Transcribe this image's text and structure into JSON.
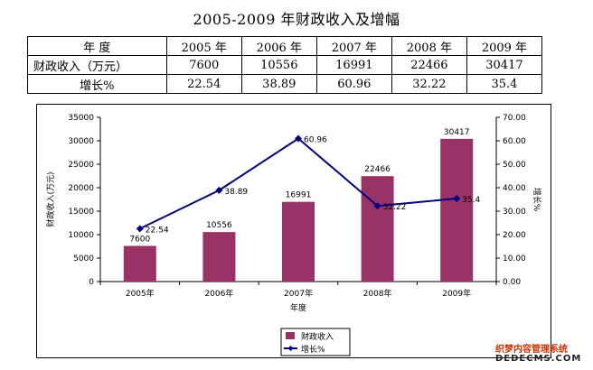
{
  "page_title": "2005-2009 年财政收入及增幅",
  "table": {
    "header": [
      "年    度",
      "2005 年",
      "2006 年",
      "2007 年",
      "2008 年",
      "2009 年"
    ],
    "rows": [
      {
        "label": "财政收入（万元）",
        "cells": [
          "7600",
          "10556",
          "16991",
          "22466",
          "30417"
        ]
      },
      {
        "label": "增长%",
        "cells": [
          "22.54",
          "38.89",
          "60.96",
          "32.22",
          "35.4"
        ]
      }
    ]
  },
  "chart_data": {
    "type": "bar",
    "categories": [
      "2005年",
      "2006年",
      "2007年",
      "2008年",
      "2009年"
    ],
    "xlabel": "年度",
    "ylabel_left": "财政收入(万元)",
    "ylabel_right": "增长%",
    "ylim_left": [
      0,
      35000
    ],
    "yticks_left": [
      "0",
      "5000",
      "10000",
      "15000",
      "20000",
      "25000",
      "30000",
      "35000"
    ],
    "ylim_right": [
      0,
      70
    ],
    "yticks_right": [
      "0.00",
      "10.00",
      "20.00",
      "30.00",
      "40.00",
      "50.00",
      "60.00",
      "70.00"
    ],
    "series": [
      {
        "name": "财政收入",
        "kind": "bar",
        "axis": "left",
        "values": [
          7600,
          10556,
          16991,
          22466,
          30417
        ],
        "labels": [
          "7600",
          "10556",
          "16991",
          "22466",
          "30417"
        ],
        "color": "#993366"
      },
      {
        "name": "增长%",
        "kind": "line",
        "axis": "right",
        "values": [
          22.54,
          38.89,
          60.96,
          32.22,
          35.4
        ],
        "labels": [
          "22.54",
          "38.89",
          "60.96",
          "32.22",
          "35.4"
        ],
        "color": "#000080"
      }
    ],
    "legend_position": "bottom-center",
    "grid": false
  },
  "watermark": {
    "line1": "织梦内容管理系统",
    "line2": "DEDECMS.COM"
  }
}
